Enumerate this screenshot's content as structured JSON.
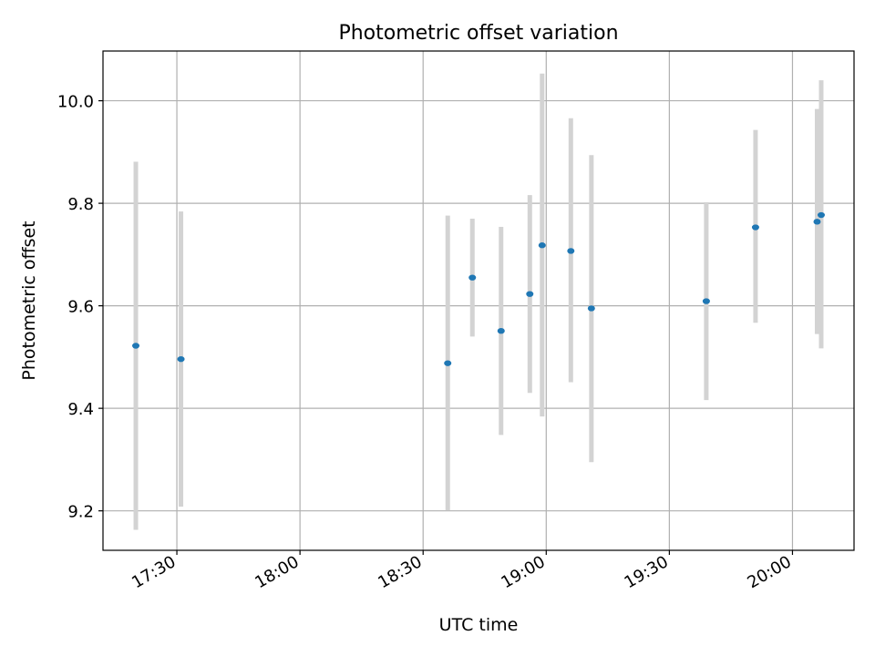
{
  "chart_data": {
    "type": "scatter",
    "title": "Photometric offset variation",
    "xlabel": "UTC time",
    "ylabel": "Photometric offset",
    "x_axis": "time",
    "xlim": [
      "17:12",
      "20:15"
    ],
    "ylim": [
      9.123,
      10.097
    ],
    "x_ticks": [
      "17:30",
      "18:00",
      "18:30",
      "19:00",
      "19:30",
      "20:00"
    ],
    "y_ticks": [
      "9.2",
      "9.4",
      "9.6",
      "9.8",
      "10.0"
    ],
    "grid": true,
    "legend": "none",
    "colors": {
      "points": "#1f77b4",
      "errorbars": "#d3d3d3",
      "grid": "#b0b0b0"
    },
    "points": [
      {
        "x": "17:20",
        "y": 9.522,
        "ylow": 9.163,
        "yhigh": 9.881
      },
      {
        "x": "17:31",
        "y": 9.496,
        "ylow": 9.208,
        "yhigh": 9.784
      },
      {
        "x": "18:36",
        "y": 9.488,
        "ylow": 9.201,
        "yhigh": 9.776
      },
      {
        "x": "18:42",
        "y": 9.655,
        "ylow": 9.54,
        "yhigh": 9.77
      },
      {
        "x": "18:49",
        "y": 9.551,
        "ylow": 9.348,
        "yhigh": 9.754
      },
      {
        "x": "18:56",
        "y": 9.623,
        "ylow": 9.43,
        "yhigh": 9.816
      },
      {
        "x": "18:59",
        "y": 9.718,
        "ylow": 9.384,
        "yhigh": 10.053
      },
      {
        "x": "19:06",
        "y": 9.707,
        "ylow": 9.451,
        "yhigh": 9.966
      },
      {
        "x": "19:11",
        "y": 9.595,
        "ylow": 9.295,
        "yhigh": 9.894
      },
      {
        "x": "19:39",
        "y": 9.609,
        "ylow": 9.416,
        "yhigh": 9.802
      },
      {
        "x": "19:51",
        "y": 9.753,
        "ylow": 9.567,
        "yhigh": 9.943
      },
      {
        "x": "20:06",
        "y": 9.764,
        "ylow": 9.545,
        "yhigh": 9.984
      },
      {
        "x": "20:07",
        "y": 9.777,
        "ylow": 9.517,
        "yhigh": 10.04
      }
    ]
  }
}
